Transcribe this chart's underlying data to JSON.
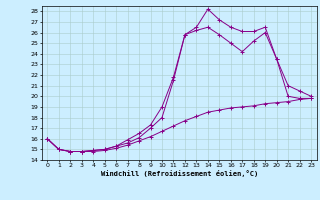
{
  "xlabel": "Windchill (Refroidissement éolien,°C)",
  "background_color": "#cceeff",
  "line_color": "#880088",
  "grid_color": "#aacccc",
  "xlim": [
    -0.5,
    23.5
  ],
  "ylim": [
    14,
    28.5
  ],
  "xticks": [
    0,
    1,
    2,
    3,
    4,
    5,
    6,
    7,
    8,
    9,
    10,
    11,
    12,
    13,
    14,
    15,
    16,
    17,
    18,
    19,
    20,
    21,
    22,
    23
  ],
  "yticks": [
    14,
    15,
    16,
    17,
    18,
    19,
    20,
    21,
    22,
    23,
    24,
    25,
    26,
    27,
    28
  ],
  "series": [
    {
      "x": [
        0,
        1,
        2,
        3,
        4,
        5,
        6,
        7,
        8,
        9,
        10,
        11,
        12,
        13,
        14,
        15,
        16,
        17,
        18,
        19,
        20,
        21,
        22,
        23
      ],
      "y": [
        16.0,
        15.0,
        14.8,
        14.8,
        14.9,
        15.0,
        15.3,
        15.6,
        16.1,
        17.0,
        18.0,
        21.5,
        25.8,
        26.5,
        28.2,
        27.2,
        26.5,
        26.1,
        26.1,
        26.5,
        23.5,
        20.0,
        19.8,
        19.8
      ]
    },
    {
      "x": [
        0,
        1,
        2,
        3,
        4,
        5,
        6,
        7,
        8,
        9,
        10,
        11,
        12,
        13,
        14,
        15,
        16,
        17,
        18,
        19,
        20,
        21,
        22,
        23
      ],
      "y": [
        16.0,
        15.0,
        14.8,
        14.8,
        14.9,
        15.0,
        15.3,
        15.9,
        16.5,
        17.3,
        19.0,
        21.8,
        25.8,
        26.2,
        26.5,
        25.8,
        25.0,
        24.2,
        25.2,
        26.0,
        23.5,
        21.0,
        20.5,
        20.0
      ]
    },
    {
      "x": [
        0,
        1,
        2,
        3,
        4,
        5,
        6,
        7,
        8,
        9,
        10,
        11,
        12,
        13,
        14,
        15,
        16,
        17,
        18,
        19,
        20,
        21,
        22,
        23
      ],
      "y": [
        16.0,
        15.0,
        14.8,
        14.8,
        14.8,
        14.9,
        15.1,
        15.4,
        15.8,
        16.2,
        16.7,
        17.2,
        17.7,
        18.1,
        18.5,
        18.7,
        18.9,
        19.0,
        19.1,
        19.3,
        19.4,
        19.5,
        19.7,
        19.8
      ]
    }
  ]
}
